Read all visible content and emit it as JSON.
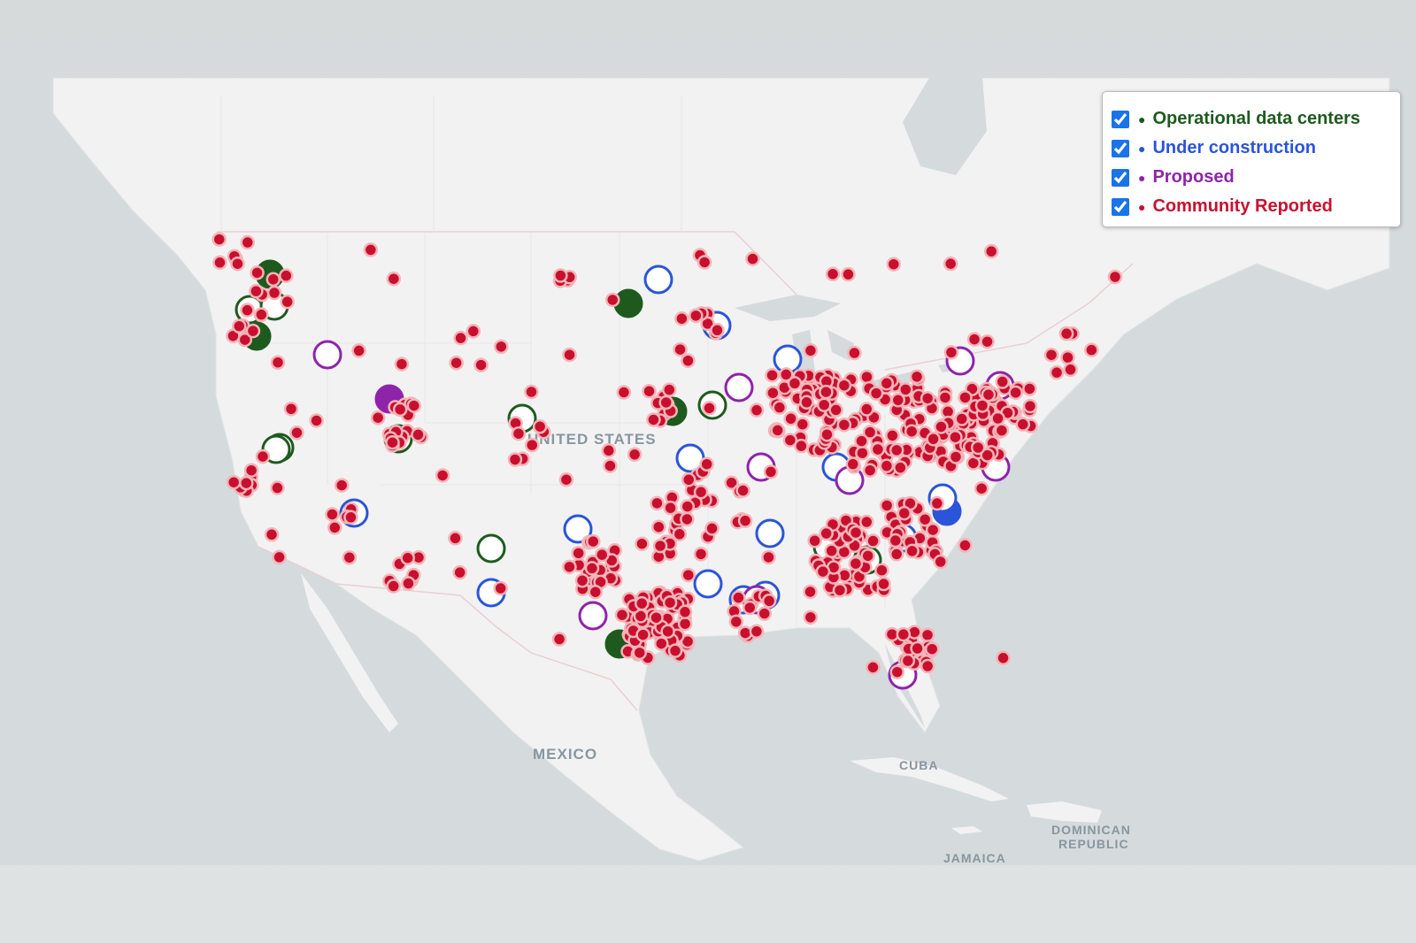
{
  "legend": {
    "items": [
      {
        "label": "Operational data centers",
        "checked": true
      },
      {
        "label": "Under construction",
        "checked": true
      },
      {
        "label": "Proposed",
        "checked": true
      },
      {
        "label": "Community Reported",
        "checked": true
      }
    ]
  },
  "map_labels": {
    "united_states": "UNITED STATES",
    "mexico": "MEXICO",
    "cuba": "CUBA",
    "dominican_republic": [
      "DOMINICAN",
      "REPUBLIC"
    ],
    "jamaica": "JAMAICA"
  }
}
